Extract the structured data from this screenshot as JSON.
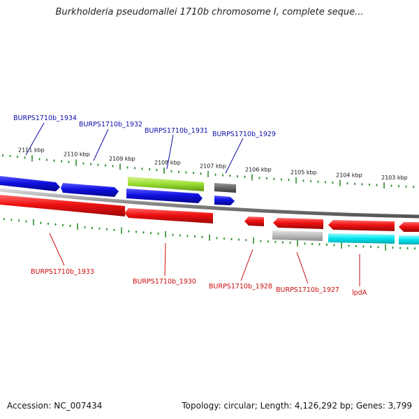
{
  "title": "Burkholderia pseudomallei 1710b chromosome I, complete seque...",
  "footer": {
    "accession": "Accession: NC_007434",
    "summary": "Topology: circular; Length: 4,126,292 bp; Genes: 3,799"
  },
  "ruler_ticks": [
    "2111 kbp",
    "2110 kbp",
    "2109 kbp",
    "2108 kbp",
    "2107 kbp",
    "2106 kbp",
    "2105 kbp",
    "2104 kbp",
    "2103 kbp"
  ],
  "genes_forward": [
    "BURPS1710b_1934",
    "BURPS1710b_1932",
    "BURPS1710b_1931",
    "BURPS1710b_1929"
  ],
  "genes_reverse": [
    "BURPS1710b_1933",
    "BURPS1710b_1930",
    "BURPS1710b_1928",
    "BURPS1710b_1927",
    "lpdA"
  ],
  "colors": {
    "forward_gene": "#1010e0",
    "reverse_gene": "#ee1111",
    "highlight_gene": "#99dd33",
    "pseudo_dark": "#666666",
    "pseudo_light": "#bbbbbb",
    "rna_gene": "#00e5ee",
    "ruler_tick": "#2a8a2a",
    "backbone": "#888888"
  }
}
